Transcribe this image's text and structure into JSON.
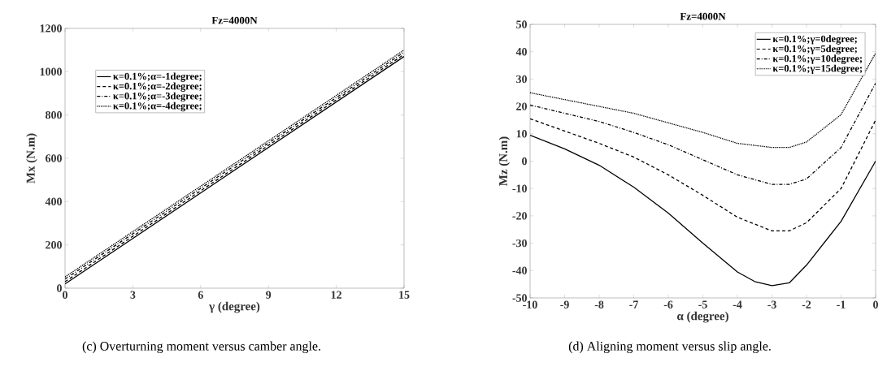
{
  "chart_data": [
    {
      "type": "line",
      "title": "Fz=4000N",
      "xlabel": "γ (degree)",
      "ylabel": "Mx (N.m)",
      "xlim": [
        0,
        15
      ],
      "xticks": [
        0,
        3,
        6,
        9,
        12,
        15
      ],
      "ylim": [
        0,
        1200
      ],
      "yticks": [
        0,
        200,
        400,
        600,
        800,
        1000,
        1200
      ],
      "grid": false,
      "legend": "top left",
      "marker": "none",
      "series": [
        {
          "name": "κ=0.1%;α=-1degree;",
          "color": "#000000",
          "line_style": "solid",
          "x": [
            0,
            15
          ],
          "values": [
            20,
            1070
          ]
        },
        {
          "name": "κ=0.1%;α=-2degree;",
          "color": "#000000",
          "line_style": "dashed",
          "x": [
            0,
            15
          ],
          "values": [
            30,
            1080
          ]
        },
        {
          "name": "κ=0.1%;α=-3degree;",
          "color": "#000000",
          "line_style": "dashdot",
          "x": [
            0,
            15
          ],
          "values": [
            42,
            1090
          ]
        },
        {
          "name": "κ=0.1%;α=-4degree;",
          "color": "#000000",
          "line_style": "dotted",
          "x": [
            0,
            15
          ],
          "values": [
            52,
            1100
          ]
        }
      ],
      "annotations": [
        "(c) Overturning moment versus camber angle."
      ]
    },
    {
      "type": "line",
      "title": "Fz=4000N",
      "xlabel": "α (degree)",
      "ylabel": "Mz (N.m)",
      "xlim": [
        -10,
        0
      ],
      "xticks": [
        -10,
        -9,
        -8,
        -7,
        -6,
        -5,
        -4,
        -3,
        -2,
        -1,
        0
      ],
      "ylim": [
        -50,
        50
      ],
      "yticks": [
        -50,
        -40,
        -30,
        -20,
        -10,
        0,
        10,
        20,
        30,
        40,
        50
      ],
      "grid": false,
      "legend": "top right",
      "marker": "none",
      "series": [
        {
          "name": "κ=0.1%;γ=0degree;",
          "color": "#000000",
          "line_style": "solid",
          "x": [
            -10,
            -9,
            -8,
            -7,
            -6,
            -5,
            -4,
            -3.5,
            -3,
            -2.5,
            -2,
            -1,
            0
          ],
          "values": [
            9.5,
            4.5,
            -1.5,
            -9.5,
            -19,
            -30,
            -40.5,
            -44,
            -45.5,
            -44.5,
            -38,
            -22,
            0
          ]
        },
        {
          "name": "κ=0.1%;γ=5degree;",
          "color": "#000000",
          "line_style": "dashed",
          "x": [
            -10,
            -9,
            -8,
            -7,
            -6,
            -5,
            -4,
            -3,
            -2.5,
            -2,
            -1,
            0
          ],
          "values": [
            15.5,
            11,
            6.5,
            1.5,
            -5,
            -12.5,
            -20.5,
            -25.5,
            -25.5,
            -22.5,
            -10,
            15
          ]
        },
        {
          "name": "κ=0.1%;γ=10degree;",
          "color": "#000000",
          "line_style": "dashdot",
          "x": [
            -10,
            -9,
            -8,
            -7,
            -6,
            -5,
            -4,
            -3,
            -2.5,
            -2,
            -1,
            0
          ],
          "values": [
            20.5,
            17.5,
            14.5,
            10.5,
            6,
            0.5,
            -5,
            -8.5,
            -8.5,
            -6.5,
            5,
            28.5
          ]
        },
        {
          "name": "κ=0.1%;γ=15degree;",
          "color": "#000000",
          "line_style": "dotted",
          "x": [
            -10,
            -9,
            -8,
            -7,
            -6,
            -5,
            -4,
            -3,
            -2.5,
            -2,
            -1,
            0
          ],
          "values": [
            25,
            22.5,
            20,
            17.5,
            14,
            10.5,
            6.5,
            5,
            5,
            7,
            17,
            39.5
          ]
        }
      ],
      "annotations": [
        "(d) Aligning moment versus slip angle."
      ]
    }
  ]
}
